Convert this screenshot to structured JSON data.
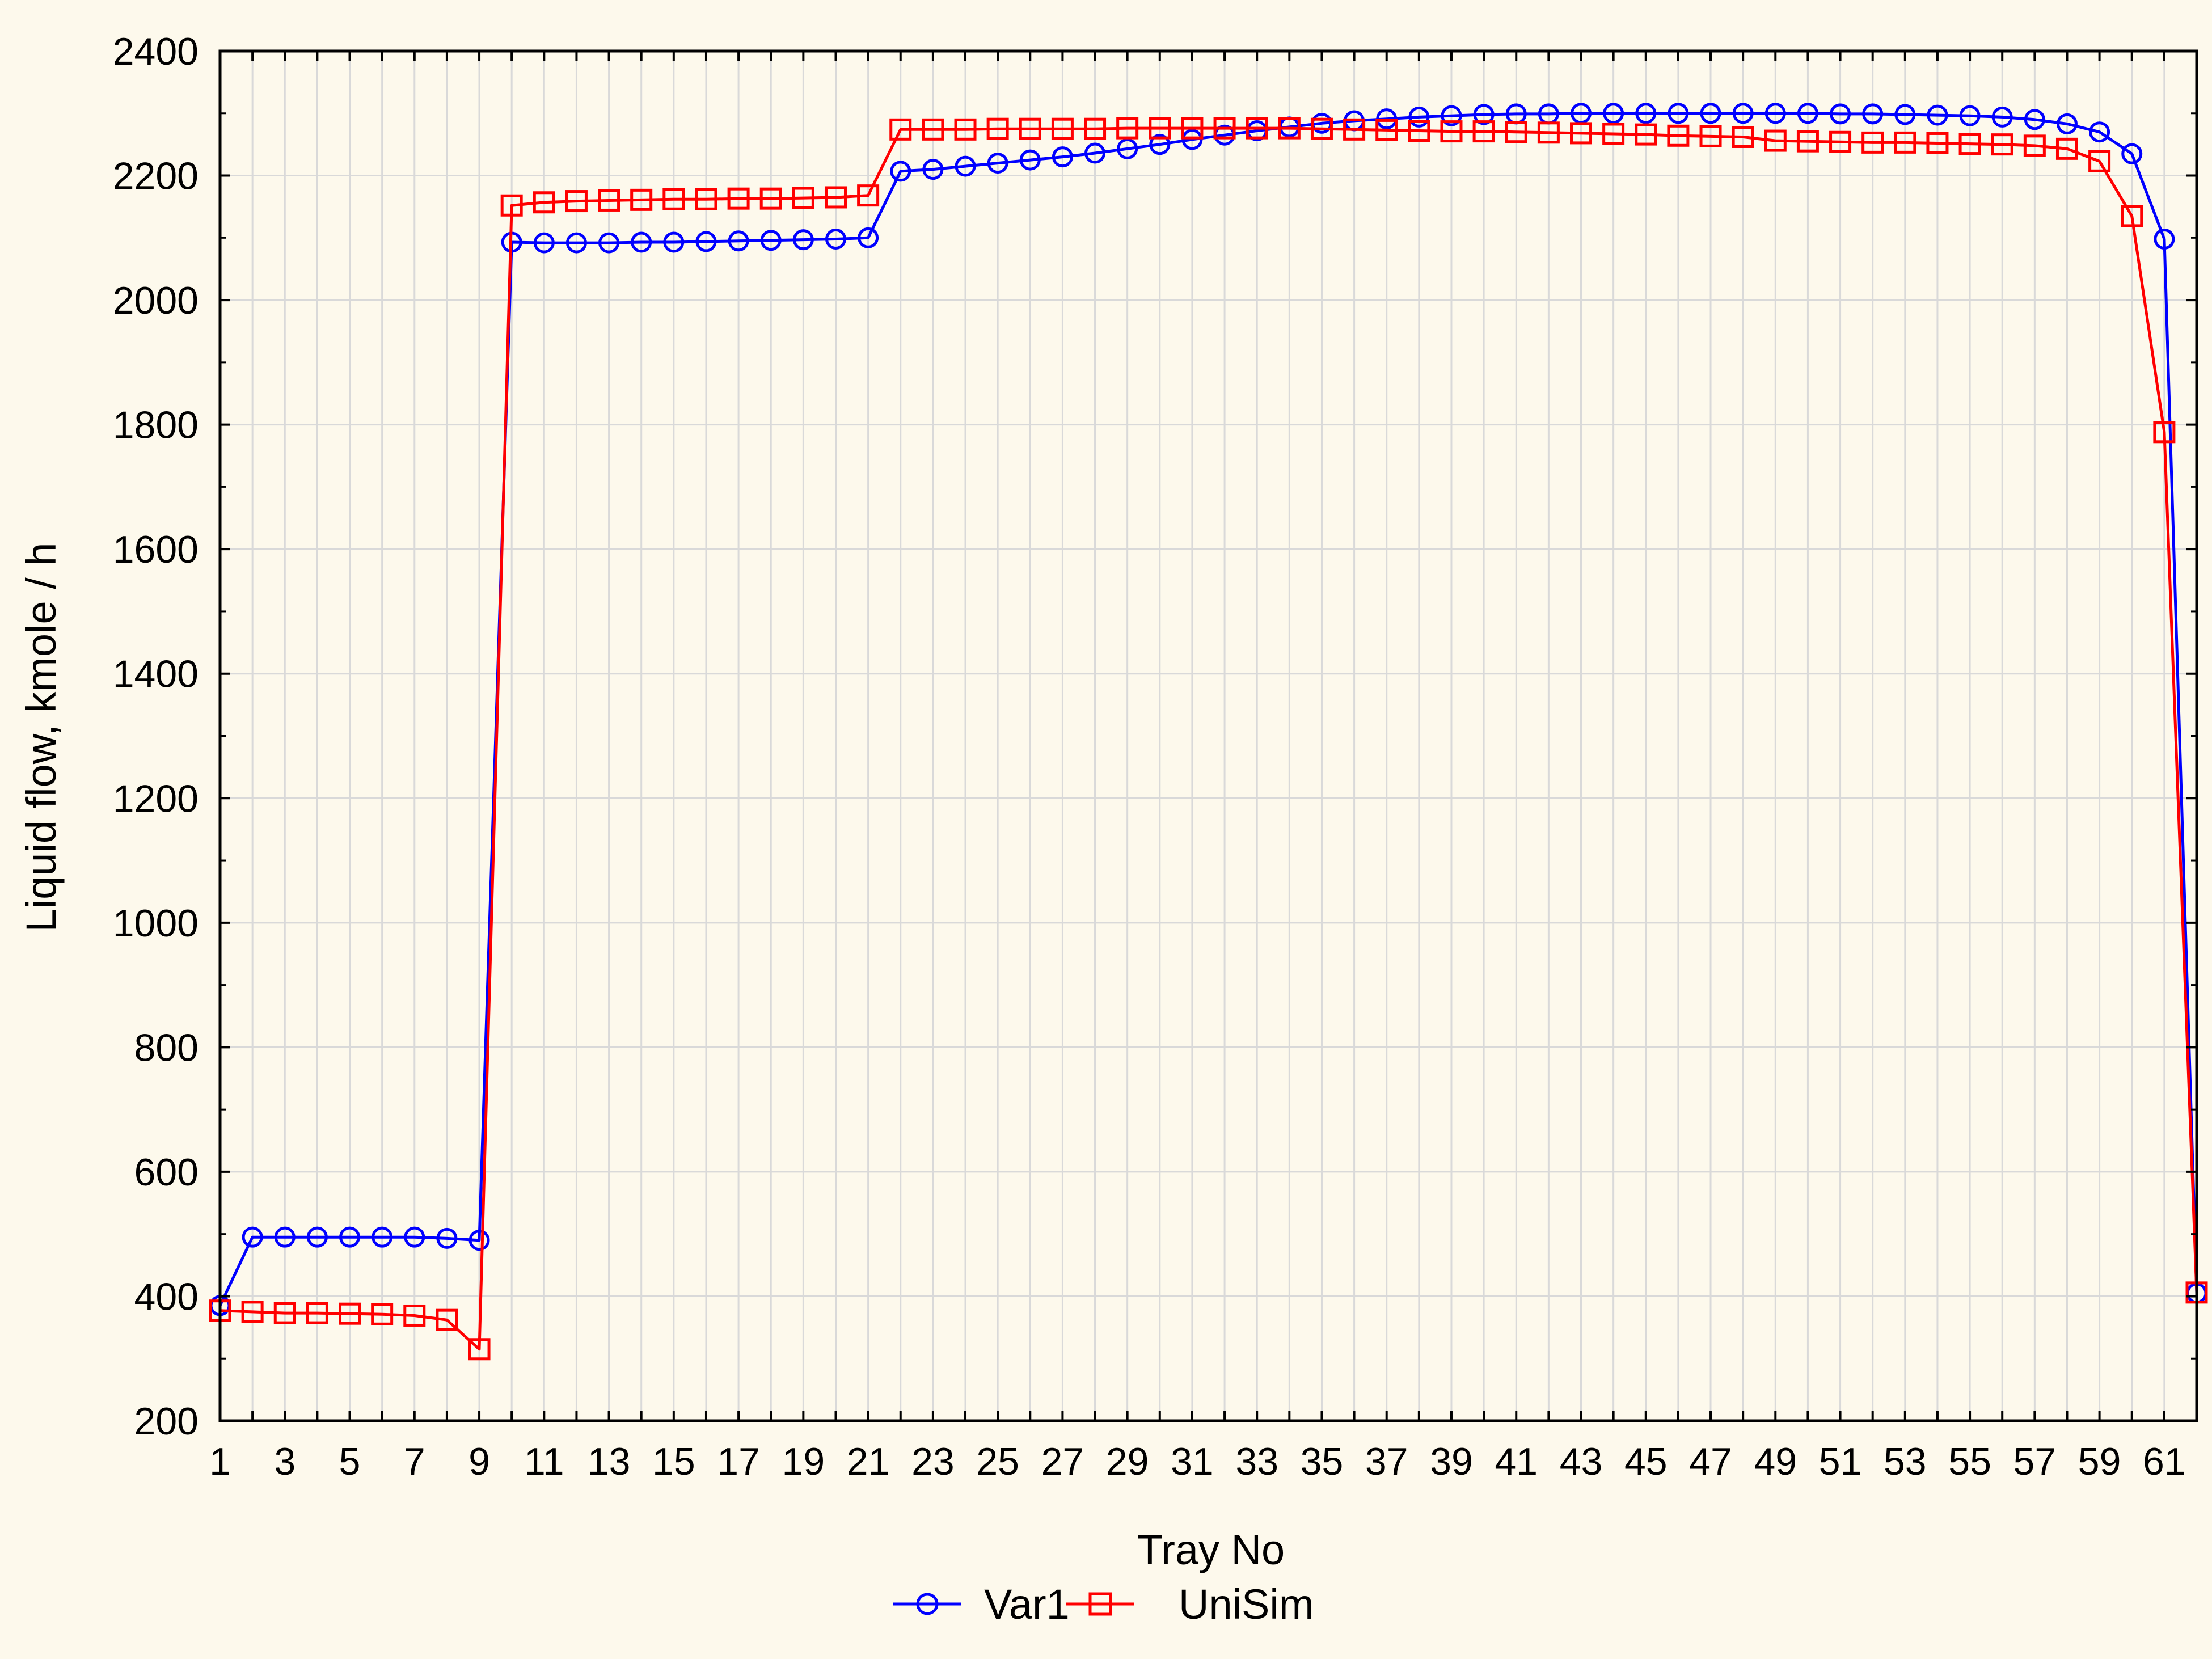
{
  "chart_data": {
    "type": "line",
    "xlabel": "Tray No",
    "ylabel": "Liquid flow, kmole / h",
    "xlim": [
      1,
      62
    ],
    "ylim": [
      200,
      2400
    ],
    "yticks": [
      200,
      400,
      600,
      800,
      1000,
      1200,
      1400,
      1600,
      1800,
      2000,
      2200,
      2400
    ],
    "xticks": [
      1,
      3,
      5,
      7,
      9,
      11,
      13,
      15,
      17,
      19,
      21,
      23,
      25,
      27,
      29,
      31,
      33,
      35,
      37,
      39,
      41,
      43,
      45,
      47,
      49,
      51,
      53,
      55,
      57,
      59,
      61
    ],
    "grid": true,
    "legend_position": "bottom",
    "x": [
      1,
      2,
      3,
      4,
      5,
      6,
      7,
      8,
      9,
      10,
      11,
      12,
      13,
      14,
      15,
      16,
      17,
      18,
      19,
      20,
      21,
      22,
      23,
      24,
      25,
      26,
      27,
      28,
      29,
      30,
      31,
      32,
      33,
      34,
      35,
      36,
      37,
      38,
      39,
      40,
      41,
      42,
      43,
      44,
      45,
      46,
      47,
      48,
      49,
      50,
      51,
      52,
      53,
      54,
      55,
      56,
      57,
      58,
      59,
      60,
      61,
      62
    ],
    "series": [
      {
        "name": "Var1",
        "color": "#0000ff",
        "marker": "circle",
        "values": [
          385,
          495,
          495,
          495,
          495,
          495,
          495,
          493,
          490,
          2093,
          2092,
          2092,
          2092,
          2093,
          2093,
          2094,
          2095,
          2096,
          2097,
          2098,
          2100,
          2207,
          2210,
          2215,
          2220,
          2225,
          2230,
          2236,
          2243,
          2250,
          2258,
          2265,
          2272,
          2278,
          2284,
          2288,
          2291,
          2294,
          2296,
          2298,
          2299,
          2299,
          2300,
          2300,
          2300,
          2300,
          2300,
          2300,
          2300,
          2300,
          2299,
          2299,
          2298,
          2297,
          2296,
          2294,
          2290,
          2283,
          2270,
          2235,
          2098,
          405
        ]
      },
      {
        "name": "UniSim",
        "color": "#ff0000",
        "marker": "square",
        "values": [
          377,
          375,
          373,
          373,
          372,
          371,
          369,
          362,
          315,
          2152,
          2157,
          2159,
          2160,
          2161,
          2162,
          2162,
          2163,
          2163,
          2164,
          2165,
          2168,
          2274,
          2274,
          2274,
          2275,
          2275,
          2275,
          2275,
          2276,
          2276,
          2276,
          2276,
          2276,
          2276,
          2275,
          2274,
          2273,
          2272,
          2271,
          2271,
          2270,
          2269,
          2268,
          2267,
          2266,
          2264,
          2263,
          2262,
          2256,
          2255,
          2254,
          2253,
          2253,
          2252,
          2251,
          2250,
          2248,
          2243,
          2223,
          2135,
          1788,
          406
        ]
      }
    ]
  }
}
